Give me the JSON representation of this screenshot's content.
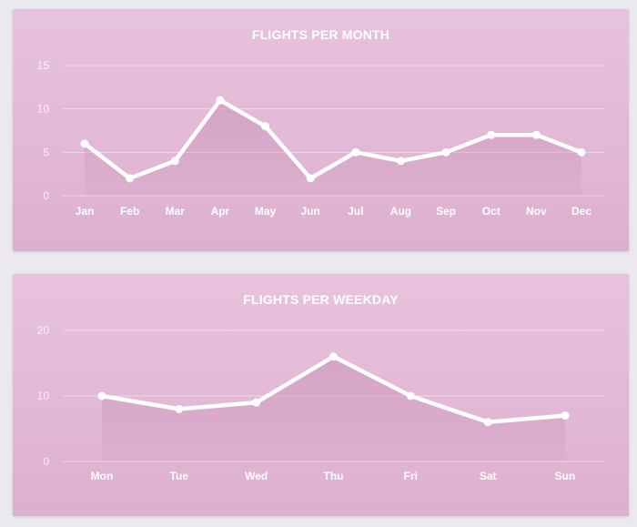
{
  "chart_data": [
    {
      "type": "area",
      "title": "FLIGHTS PER MONTH",
      "categories": [
        "Jan",
        "Feb",
        "Mar",
        "Apr",
        "May",
        "Jun",
        "Jul",
        "Aug",
        "Sep",
        "Oct",
        "Nov",
        "Dec"
      ],
      "values": [
        6,
        2,
        4,
        11,
        8,
        2,
        5,
        4,
        5,
        7,
        7,
        5
      ],
      "yticks": [
        0,
        5,
        10,
        15
      ],
      "ylim": [
        0,
        15
      ],
      "grid": true
    },
    {
      "type": "area",
      "title": "FLIGHTS PER WEEKDAY",
      "categories": [
        "Mon",
        "Tue",
        "Wed",
        "Thu",
        "Fri",
        "Sat",
        "Sun"
      ],
      "values": [
        10,
        8,
        9,
        16,
        10,
        6,
        7
      ],
      "yticks": [
        0,
        10,
        20
      ],
      "ylim": [
        0,
        20
      ],
      "grid": true
    }
  ]
}
